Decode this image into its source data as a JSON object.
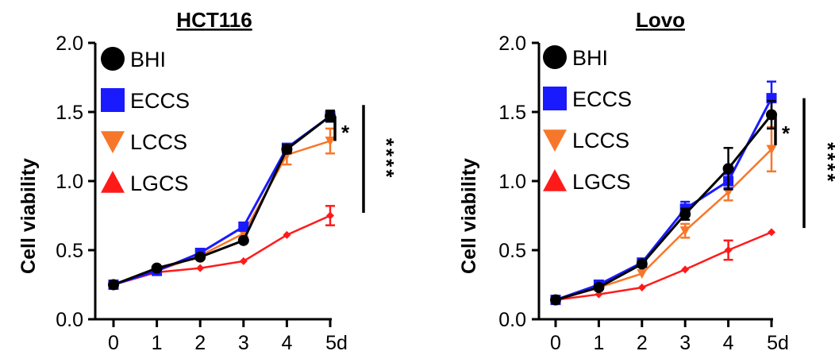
{
  "chart_data": [
    {
      "type": "line",
      "title": "HCT116",
      "xlabel": "",
      "ylabel": "Cell viability",
      "x": [
        0,
        1,
        2,
        3,
        4,
        5
      ],
      "xticklabels": [
        "0",
        "1",
        "2",
        "3",
        "4",
        "5d"
      ],
      "ylim": [
        0,
        2.0
      ],
      "yticks": [
        0,
        0.5,
        1.0,
        1.5,
        2.0
      ],
      "yticklabels": [
        "0.0",
        "0.5",
        "1.0",
        "1.5",
        "2.0"
      ],
      "legend_position": "top-left",
      "series": [
        {
          "name": "LGCS",
          "color": "#ff1a1a",
          "marker": "diamond-triangle",
          "values": [
            0.25,
            0.34,
            0.37,
            0.42,
            0.61,
            0.75
          ],
          "errors": [
            0.01,
            0.01,
            0.01,
            0.01,
            0.01,
            0.07
          ]
        },
        {
          "name": "LCCS",
          "color": "#f7772a",
          "marker": "triangle-down",
          "values": [
            0.25,
            0.35,
            0.46,
            0.62,
            1.19,
            1.29
          ],
          "errors": [
            0.01,
            0.01,
            0.01,
            0.02,
            0.07,
            0.09
          ]
        },
        {
          "name": "ECCS",
          "color": "#1a1aff",
          "marker": "square",
          "values": [
            0.25,
            0.35,
            0.48,
            0.67,
            1.24,
            1.47
          ],
          "errors": [
            0.01,
            0.01,
            0.01,
            0.02,
            0.03,
            0.04
          ]
        },
        {
          "name": "BHI",
          "color": "#000000",
          "marker": "circle",
          "values": [
            0.25,
            0.37,
            0.45,
            0.57,
            1.23,
            1.47
          ],
          "errors": [
            0.01,
            0.01,
            0.01,
            0.01,
            0.03,
            0.04
          ]
        }
      ],
      "annotations": [
        {
          "text": "*",
          "y_range": [
            1.29,
            1.47
          ]
        },
        {
          "text": "****",
          "y_range": [
            0.77,
            1.55
          ]
        }
      ]
    },
    {
      "type": "line",
      "title": "Lovo",
      "xlabel": "",
      "ylabel": "Cell viability",
      "x": [
        0,
        1,
        2,
        3,
        4,
        5
      ],
      "xticklabels": [
        "0",
        "1",
        "2",
        "3",
        "4",
        "5d"
      ],
      "ylim": [
        0,
        2.0
      ],
      "yticks": [
        0,
        0.5,
        1.0,
        1.5,
        2.0
      ],
      "yticklabels": [
        "0.0",
        "0.5",
        "1.0",
        "1.5",
        "2.0"
      ],
      "legend_position": "top-left",
      "series": [
        {
          "name": "LGCS",
          "color": "#ff1a1a",
          "marker": "diamond-triangle",
          "values": [
            0.14,
            0.18,
            0.23,
            0.36,
            0.5,
            0.63
          ],
          "errors": [
            0.01,
            0.01,
            0.01,
            0.01,
            0.07,
            0.01
          ]
        },
        {
          "name": "LCCS",
          "color": "#f7772a",
          "marker": "triangle-down",
          "values": [
            0.14,
            0.23,
            0.33,
            0.64,
            0.92,
            1.23
          ],
          "errors": [
            0.01,
            0.01,
            0.01,
            0.05,
            0.06,
            0.16
          ]
        },
        {
          "name": "ECCS",
          "color": "#1a1aff",
          "marker": "square",
          "values": [
            0.14,
            0.25,
            0.41,
            0.8,
            1.0,
            1.6
          ],
          "errors": [
            0.01,
            0.02,
            0.02,
            0.05,
            0.05,
            0.12
          ]
        },
        {
          "name": "BHI",
          "color": "#000000",
          "marker": "circle",
          "values": [
            0.14,
            0.23,
            0.4,
            0.76,
            1.09,
            1.48
          ],
          "errors": [
            0.01,
            0.01,
            0.02,
            0.04,
            0.15,
            0.1
          ]
        }
      ],
      "annotations": [
        {
          "text": "*",
          "y_range": [
            1.26,
            1.49
          ]
        },
        {
          "text": "****",
          "y_range": [
            0.66,
            1.6
          ]
        }
      ]
    }
  ]
}
